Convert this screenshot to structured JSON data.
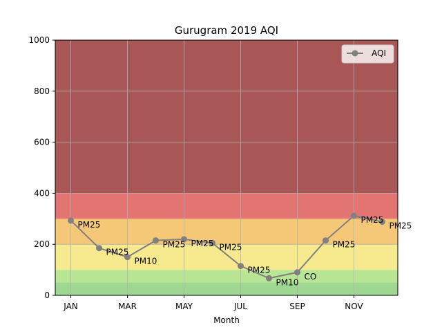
{
  "chart_data": {
    "type": "line",
    "title": "Gurugram 2019 AQI",
    "xlabel": "Month",
    "ylabel": "",
    "ylim": [
      0,
      1000
    ],
    "x": [
      0,
      1,
      2,
      3,
      4,
      5,
      6,
      7,
      8,
      9,
      10,
      11
    ],
    "xlim": [
      -0.55,
      11.55
    ],
    "xticks": [
      0,
      2,
      4,
      6,
      8,
      10
    ],
    "xtick_labels": [
      "JAN",
      "MAR",
      "MAY",
      "JUL",
      "SEP",
      "NOV"
    ],
    "yticks": [
      0,
      200,
      400,
      600,
      800,
      1000
    ],
    "ytick_labels": [
      "0",
      "200",
      "400",
      "600",
      "800",
      "1000"
    ],
    "grid": true,
    "legend": "top-right",
    "series": [
      {
        "name": "AQI",
        "color": "#808080",
        "values": [
          293,
          185,
          150,
          215,
          220,
          205,
          115,
          67,
          90,
          215,
          312,
          288
        ],
        "labels": [
          "PM25",
          "PM25",
          "PM10",
          "PM25",
          "PM25",
          "PM25",
          "PM25",
          "PM10",
          "CO",
          "PM25",
          "PM25",
          "PM25"
        ]
      }
    ],
    "bands": [
      {
        "from": 0,
        "to": 50,
        "color": "#9dd791"
      },
      {
        "from": 50,
        "to": 100,
        "color": "#b9e695"
      },
      {
        "from": 100,
        "to": 200,
        "color": "#f6e98e"
      },
      {
        "from": 200,
        "to": 300,
        "color": "#f5c877"
      },
      {
        "from": 300,
        "to": 400,
        "color": "#e27471"
      },
      {
        "from": 400,
        "to": 1000,
        "color": "#a85656"
      }
    ]
  }
}
